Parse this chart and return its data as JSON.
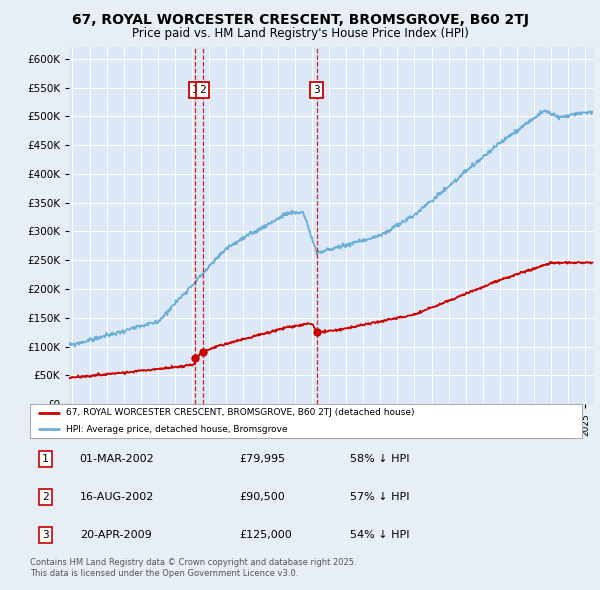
{
  "title": "67, ROYAL WORCESTER CRESCENT, BROMSGROVE, B60 2TJ",
  "subtitle": "Price paid vs. HM Land Registry's House Price Index (HPI)",
  "bg_color": "#e8eef5",
  "plot_bg_color": "#dce8f5",
  "legend_line1": "67, ROYAL WORCESTER CRESCENT, BROMSGROVE, B60 2TJ (detached house)",
  "legend_line2": "HPI: Average price, detached house, Bromsgrove",
  "footnote": "Contains HM Land Registry data © Crown copyright and database right 2025.\nThis data is licensed under the Open Government Licence v3.0.",
  "transactions": [
    {
      "num": 1,
      "date": "01-MAR-2002",
      "price": 79995,
      "year": 2002.17,
      "label": "£79,995",
      "pct": "58% ↓ HPI"
    },
    {
      "num": 2,
      "date": "16-AUG-2002",
      "price": 90500,
      "year": 2002.62,
      "label": "£90,500",
      "pct": "57% ↓ HPI"
    },
    {
      "num": 3,
      "date": "20-APR-2009",
      "price": 125000,
      "year": 2009.3,
      "label": "£125,000",
      "pct": "54% ↓ HPI"
    }
  ],
  "ylim": [
    0,
    620000
  ],
  "xlim_start": 1994.8,
  "xlim_end": 2025.5,
  "red_color": "#cc0000",
  "blue_color": "#6baed6",
  "grid_color": "#ffffff",
  "hpi_seed": 42,
  "red_seed": 99
}
